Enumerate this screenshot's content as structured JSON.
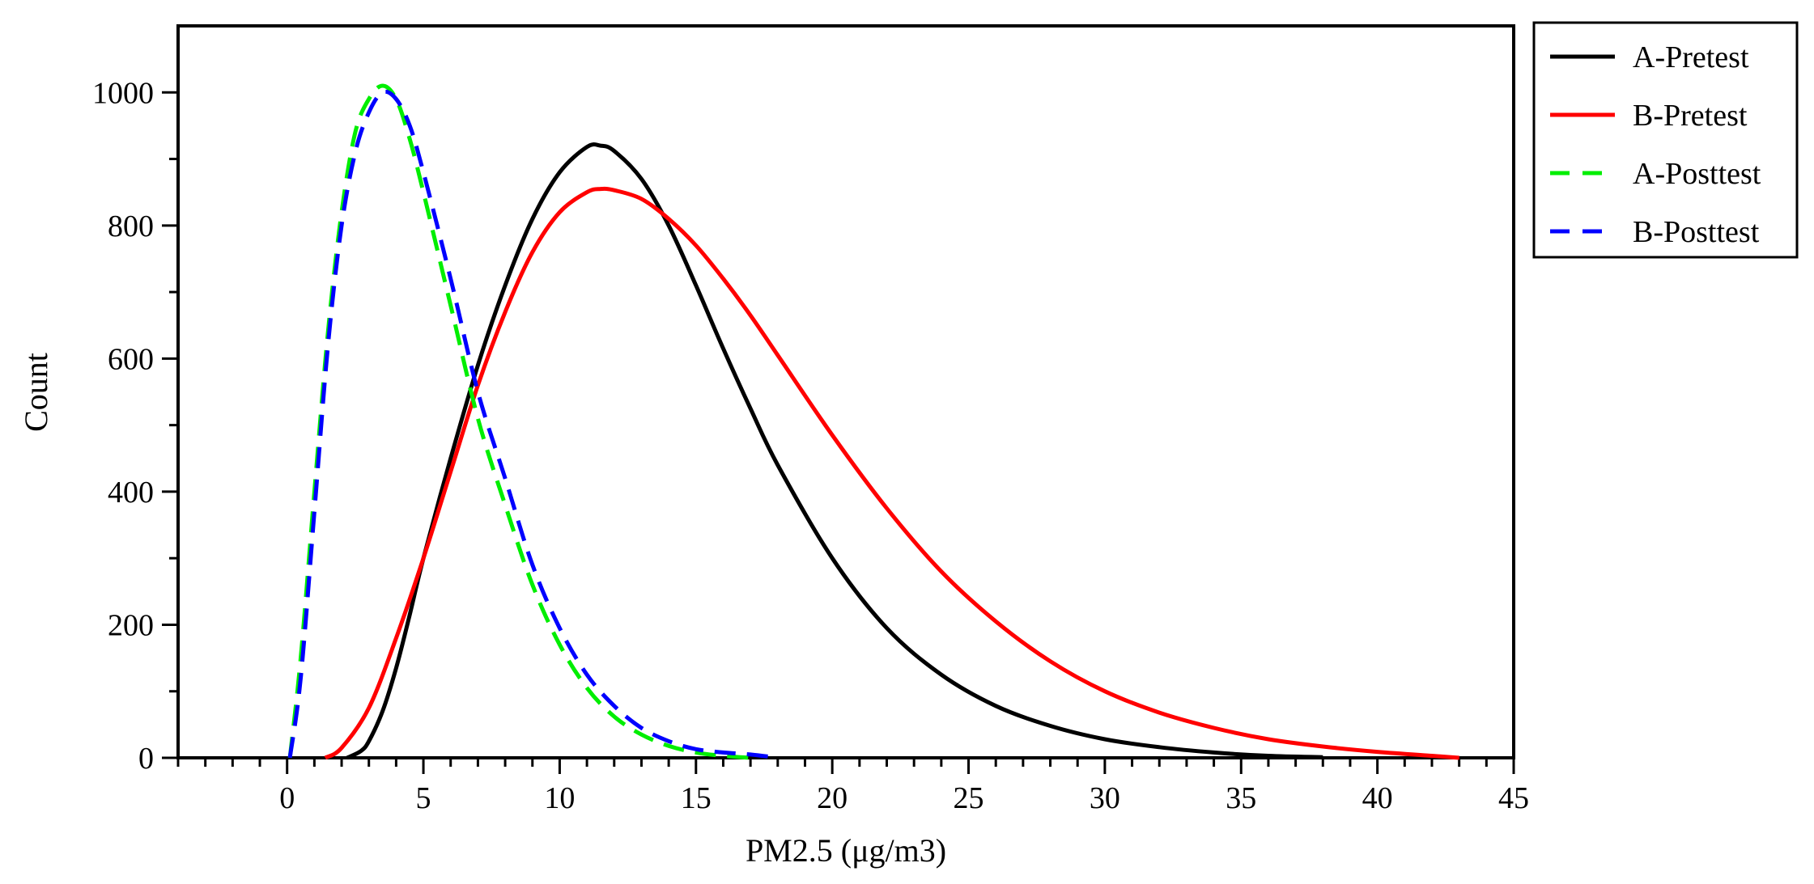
{
  "chart_data": {
    "type": "line",
    "title": "",
    "xlabel": "PM2.5 (μg/m3)",
    "ylabel": "Count",
    "xlim": [
      -4,
      45
    ],
    "ylim": [
      0,
      1100
    ],
    "xticks": [
      0,
      5,
      10,
      15,
      20,
      25,
      30,
      35,
      40,
      45
    ],
    "yticks": [
      0,
      200,
      400,
      600,
      800,
      1000
    ],
    "grid": false,
    "legend_position": "top-right-outside",
    "series": [
      {
        "name": "A-Pretest",
        "color": "#000000",
        "dash": "solid",
        "points": [
          [
            2.2,
            0
          ],
          [
            2.7,
            10
          ],
          [
            3,
            25
          ],
          [
            3.5,
            70
          ],
          [
            4,
            135
          ],
          [
            4.5,
            215
          ],
          [
            5,
            300
          ],
          [
            6,
            450
          ],
          [
            7,
            590
          ],
          [
            8,
            710
          ],
          [
            9,
            810
          ],
          [
            10,
            880
          ],
          [
            11,
            918
          ],
          [
            11.5,
            920
          ],
          [
            12,
            912
          ],
          [
            13,
            870
          ],
          [
            14,
            800
          ],
          [
            15,
            710
          ],
          [
            16,
            615
          ],
          [
            17,
            525
          ],
          [
            18,
            440
          ],
          [
            20,
            300
          ],
          [
            22,
            195
          ],
          [
            24,
            125
          ],
          [
            26,
            78
          ],
          [
            28,
            48
          ],
          [
            30,
            28
          ],
          [
            32,
            16
          ],
          [
            34,
            8
          ],
          [
            36,
            3
          ],
          [
            38,
            1
          ]
        ]
      },
      {
        "name": "B-Pretest",
        "color": "#ff0000",
        "dash": "solid",
        "points": [
          [
            1.4,
            0
          ],
          [
            2,
            15
          ],
          [
            3,
            75
          ],
          [
            4,
            180
          ],
          [
            5,
            300
          ],
          [
            6,
            430
          ],
          [
            7,
            560
          ],
          [
            8,
            670
          ],
          [
            9,
            760
          ],
          [
            10,
            820
          ],
          [
            11,
            850
          ],
          [
            11.5,
            855
          ],
          [
            12,
            853
          ],
          [
            13,
            840
          ],
          [
            14,
            810
          ],
          [
            15,
            770
          ],
          [
            16,
            720
          ],
          [
            17,
            665
          ],
          [
            18,
            605
          ],
          [
            20,
            485
          ],
          [
            22,
            375
          ],
          [
            24,
            280
          ],
          [
            26,
            205
          ],
          [
            28,
            145
          ],
          [
            30,
            100
          ],
          [
            32,
            68
          ],
          [
            34,
            45
          ],
          [
            36,
            28
          ],
          [
            38,
            17
          ],
          [
            40,
            9
          ],
          [
            42,
            3
          ],
          [
            43,
            0
          ]
        ]
      },
      {
        "name": "A-Posttest",
        "color": "#00ee00",
        "dash": "dashed",
        "points": [
          [
            0.1,
            0
          ],
          [
            0.5,
            150
          ],
          [
            1,
            400
          ],
          [
            1.5,
            640
          ],
          [
            2,
            820
          ],
          [
            2.5,
            940
          ],
          [
            3,
            990
          ],
          [
            3.5,
            1010
          ],
          [
            4,
            990
          ],
          [
            4.5,
            930
          ],
          [
            5,
            850
          ],
          [
            6,
            680
          ],
          [
            7,
            510
          ],
          [
            8,
            380
          ],
          [
            9,
            260
          ],
          [
            10,
            170
          ],
          [
            11,
            105
          ],
          [
            12,
            62
          ],
          [
            13,
            35
          ],
          [
            14,
            18
          ],
          [
            15,
            8
          ],
          [
            16,
            3
          ],
          [
            17,
            0
          ]
        ]
      },
      {
        "name": "B-Posttest",
        "color": "#0000ff",
        "dash": "dashed",
        "points": [
          [
            0.1,
            0
          ],
          [
            0.5,
            120
          ],
          [
            1,
            370
          ],
          [
            1.5,
            620
          ],
          [
            2,
            800
          ],
          [
            2.5,
            910
          ],
          [
            3,
            970
          ],
          [
            3.5,
            1000
          ],
          [
            4,
            990
          ],
          [
            4.5,
            950
          ],
          [
            5,
            880
          ],
          [
            6,
            720
          ],
          [
            7,
            550
          ],
          [
            8,
            420
          ],
          [
            9,
            290
          ],
          [
            10,
            195
          ],
          [
            11,
            125
          ],
          [
            12,
            78
          ],
          [
            13,
            45
          ],
          [
            14,
            25
          ],
          [
            15,
            13
          ],
          [
            16,
            8
          ],
          [
            17,
            5
          ],
          [
            18,
            0
          ]
        ]
      }
    ]
  }
}
